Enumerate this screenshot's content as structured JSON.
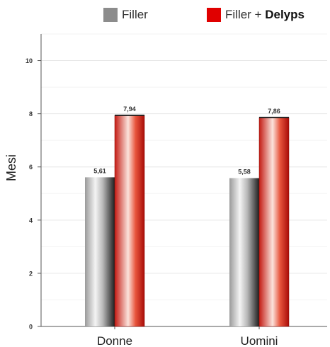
{
  "legend": [
    {
      "name": "Filler",
      "color": "#8c8c8c"
    },
    {
      "name_plain": "Filler + ",
      "name_bold": "Delyps",
      "color": "#e00000"
    }
  ],
  "chart_data": {
    "type": "bar",
    "categories": [
      "Donne",
      "Uomini"
    ],
    "series": [
      {
        "name": "Filler",
        "values": [
          5.61,
          5.58
        ],
        "labels": [
          "5,61",
          "5,58"
        ],
        "color": "#8c8c8c"
      },
      {
        "name": "Filler + Delyps",
        "values": [
          7.94,
          7.86
        ],
        "labels": [
          "7,94",
          "7,86"
        ],
        "color": "#e00000"
      }
    ],
    "ylabel": "Mesi",
    "xlabel": "",
    "ylim": [
      0,
      11
    ],
    "yticks": [
      0,
      2,
      4,
      6,
      8,
      10
    ],
    "grid": true,
    "legend_position": "top"
  }
}
